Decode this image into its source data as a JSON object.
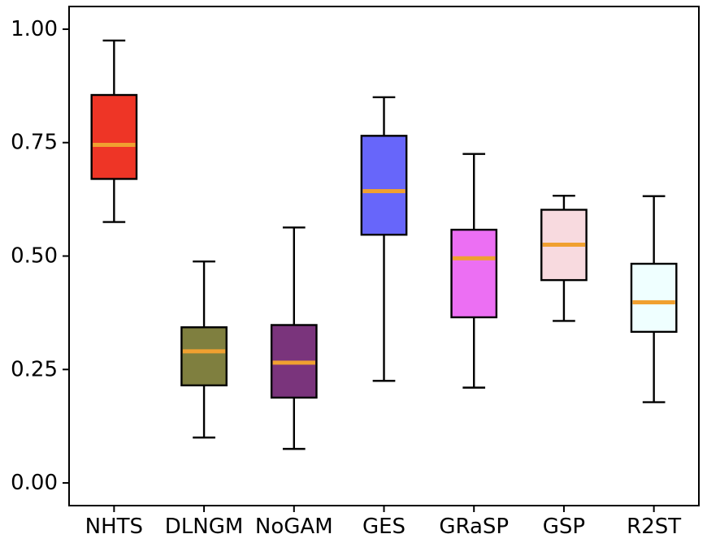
{
  "chart_data": {
    "type": "box",
    "title": "",
    "xlabel": "",
    "ylabel": "",
    "ylim": [
      -0.05,
      1.05
    ],
    "yticks": [
      {
        "value": 0.0,
        "label": "0.00"
      },
      {
        "value": 0.25,
        "label": "0.25"
      },
      {
        "value": 0.5,
        "label": "0.50"
      },
      {
        "value": 0.75,
        "label": "0.75"
      },
      {
        "value": 1.0,
        "label": "1.00"
      }
    ],
    "grid": false,
    "median_color": "#f0a030",
    "categories": [
      "NHTS",
      "DLNGM",
      "NoGAM",
      "GES",
      "GRaSP",
      "GSP",
      "R2ST"
    ],
    "boxes": [
      {
        "name": "NHTS",
        "whisker_low": 0.575,
        "q1": 0.67,
        "median": 0.745,
        "q3": 0.855,
        "whisker_high": 0.975,
        "color": "#ee3526"
      },
      {
        "name": "DLNGM",
        "whisker_low": 0.1,
        "q1": 0.215,
        "median": 0.29,
        "q3": 0.343,
        "whisker_high": 0.488,
        "color": "#7f7f3f"
      },
      {
        "name": "NoGAM",
        "whisker_low": 0.075,
        "q1": 0.188,
        "median": 0.265,
        "q3": 0.348,
        "whisker_high": 0.563,
        "color": "#7a347c"
      },
      {
        "name": "GES",
        "whisker_low": 0.225,
        "q1": 0.547,
        "median": 0.643,
        "q3": 0.765,
        "whisker_high": 0.85,
        "color": "#6766fa"
      },
      {
        "name": "GRaSP",
        "whisker_low": 0.21,
        "q1": 0.365,
        "median": 0.495,
        "q3": 0.558,
        "whisker_high": 0.725,
        "color": "#ec6ff3"
      },
      {
        "name": "GSP",
        "whisker_low": 0.357,
        "q1": 0.447,
        "median": 0.525,
        "q3": 0.602,
        "whisker_high": 0.633,
        "color": "#f8dadf"
      },
      {
        "name": "R2ST",
        "whisker_low": 0.178,
        "q1": 0.333,
        "median": 0.398,
        "q3": 0.483,
        "whisker_high": 0.632,
        "color": "#efffff"
      }
    ]
  }
}
